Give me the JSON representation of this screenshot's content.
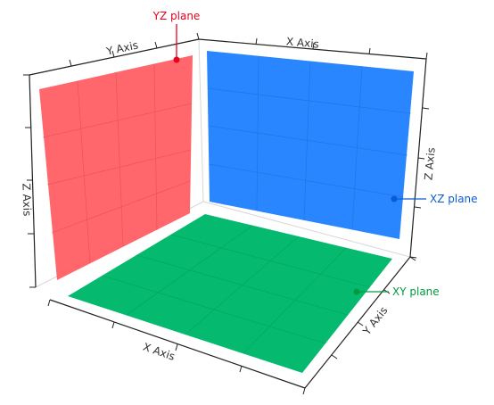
{
  "axes": {
    "x": {
      "label": "X Axis"
    },
    "y": {
      "label": "Y Axis"
    },
    "z": {
      "label": "Z Axis"
    }
  },
  "planes": {
    "yz": {
      "label": "YZ plane",
      "color": "#ff5a5f",
      "label_color": "#e8001c"
    },
    "xz": {
      "label": "XZ plane",
      "color": "#1e80ff",
      "label_color": "#0a5bd7"
    },
    "xy": {
      "label": "XY plane",
      "color": "#00b96b",
      "label_color": "#009a3e"
    }
  }
}
